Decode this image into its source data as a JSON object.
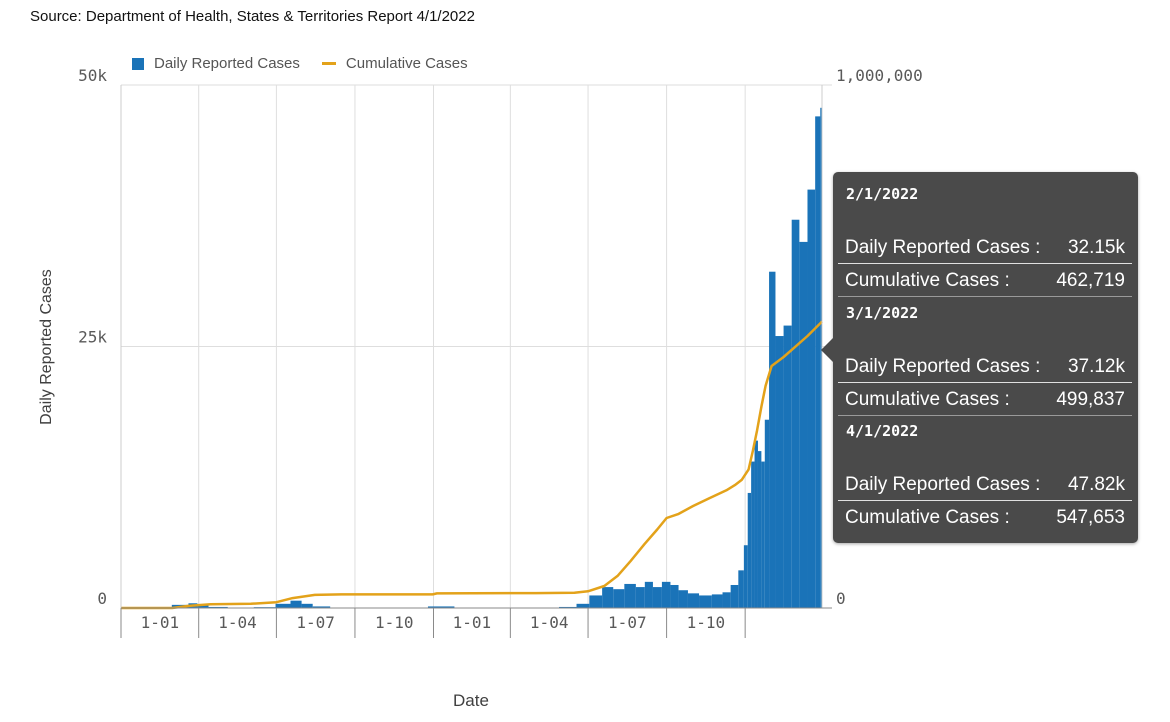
{
  "source": "Source: Department of Health, States & Territories Report 4/1/2022",
  "legend": {
    "daily_label": "Daily Reported Cases",
    "cumulative_label": "Cumulative Cases"
  },
  "colors": {
    "bar": "#1a73b8",
    "line": "#e3a21a",
    "grid": "#dedede",
    "tooltip_bg": "#4a4a4a"
  },
  "tooltip": {
    "entries": [
      {
        "date": "2/1/2022",
        "daily_label": "Daily Reported Cases :",
        "daily_value": "32.15k",
        "cumulative_label": "Cumulative Cases :",
        "cumulative_value": "462,719"
      },
      {
        "date": "3/1/2022",
        "daily_label": "Daily Reported Cases :",
        "daily_value": "37.12k",
        "cumulative_label": "Cumulative Cases :",
        "cumulative_value": "499,837"
      },
      {
        "date": "4/1/2022",
        "daily_label": "Daily Reported Cases :",
        "daily_value": "47.82k",
        "cumulative_label": "Cumulative Cases :",
        "cumulative_value": "547,653"
      }
    ]
  },
  "chart_data": {
    "type": "bar",
    "title": "",
    "xlabel": "Date",
    "ylabel": "Daily Reported Cases",
    "y2label": "Cumulative Cases",
    "x_start": "2020-01-01",
    "x_end": "2022-04-01",
    "ylim": [
      0,
      50000
    ],
    "y2lim": [
      0,
      1000000
    ],
    "y_ticks": [
      "0",
      "25k",
      "50k"
    ],
    "y2_ticks": [
      "0",
      "500,000",
      "1,000,000"
    ],
    "x_ticks": [
      "1-01",
      "1-04",
      "1-07",
      "1-10",
      "1-01",
      "1-04",
      "1-07",
      "1-10"
    ],
    "grid": true,
    "legend_position": "top-left",
    "series": [
      {
        "name": "Daily Reported Cases",
        "type": "bar",
        "axis": "left",
        "x": [
          "2020-01-15",
          "2020-02-15",
          "2020-03-15",
          "2020-03-25",
          "2020-04-05",
          "2020-04-20",
          "2020-05-20",
          "2020-06-20",
          "2020-07-10",
          "2020-07-25",
          "2020-08-05",
          "2020-08-20",
          "2020-09-15",
          "2020-10-15",
          "2020-11-15",
          "2020-12-15",
          "2021-01-05",
          "2021-02-15",
          "2021-03-15",
          "2021-04-15",
          "2021-05-15",
          "2021-06-10",
          "2021-06-25",
          "2021-07-10",
          "2021-07-25",
          "2021-08-05",
          "2021-08-20",
          "2021-09-01",
          "2021-09-10",
          "2021-09-20",
          "2021-10-01",
          "2021-10-10",
          "2021-10-20",
          "2021-11-01",
          "2021-11-15",
          "2021-12-01",
          "2021-12-10",
          "2021-12-20",
          "2021-12-28",
          "2022-01-02",
          "2022-01-06",
          "2022-01-10",
          "2022-01-14",
          "2022-01-18",
          "2022-01-22",
          "2022-01-26",
          "2022-02-01",
          "2022-02-10",
          "2022-02-20",
          "2022-03-01",
          "2022-03-10",
          "2022-03-20",
          "2022-03-28",
          "2022-04-01"
        ],
        "values": [
          0,
          0,
          300,
          450,
          250,
          100,
          30,
          80,
          400,
          700,
          400,
          150,
          40,
          10,
          10,
          30,
          150,
          20,
          10,
          10,
          10,
          100,
          400,
          1200,
          2000,
          1800,
          2300,
          2000,
          2500,
          2000,
          2500,
          2200,
          1700,
          1400,
          1200,
          1300,
          1500,
          2200,
          3600,
          6000,
          11000,
          14000,
          16000,
          15000,
          14000,
          18000,
          32150,
          26000,
          27000,
          37120,
          35000,
          40000,
          47000,
          47820
        ]
      },
      {
        "name": "Cumulative Cases",
        "type": "line",
        "axis": "right",
        "x": [
          "2020-01-01",
          "2020-03-01",
          "2020-03-20",
          "2020-04-15",
          "2020-06-01",
          "2020-07-01",
          "2020-07-20",
          "2020-08-15",
          "2020-09-15",
          "2020-12-31",
          "2021-01-05",
          "2021-05-01",
          "2021-06-15",
          "2021-07-01",
          "2021-07-20",
          "2021-08-05",
          "2021-08-20",
          "2021-09-05",
          "2021-09-20",
          "2021-10-01",
          "2021-10-15",
          "2021-11-01",
          "2021-11-20",
          "2021-12-10",
          "2021-12-20",
          "2021-12-28",
          "2022-01-05",
          "2022-01-10",
          "2022-01-15",
          "2022-01-20",
          "2022-01-25",
          "2022-02-01",
          "2022-02-15",
          "2022-03-01",
          "2022-03-15",
          "2022-04-01"
        ],
        "values": [
          0,
          0,
          4000,
          7000,
          8000,
          11000,
          19000,
          25000,
          26000,
          26000,
          28000,
          28500,
          29000,
          32000,
          42000,
          62000,
          90000,
          122000,
          150000,
          172000,
          180000,
          195000,
          210000,
          225000,
          235000,
          245000,
          265000,
          300000,
          340000,
          385000,
          425000,
          462719,
          480000,
          499837,
          520000,
          547653
        ]
      }
    ]
  }
}
